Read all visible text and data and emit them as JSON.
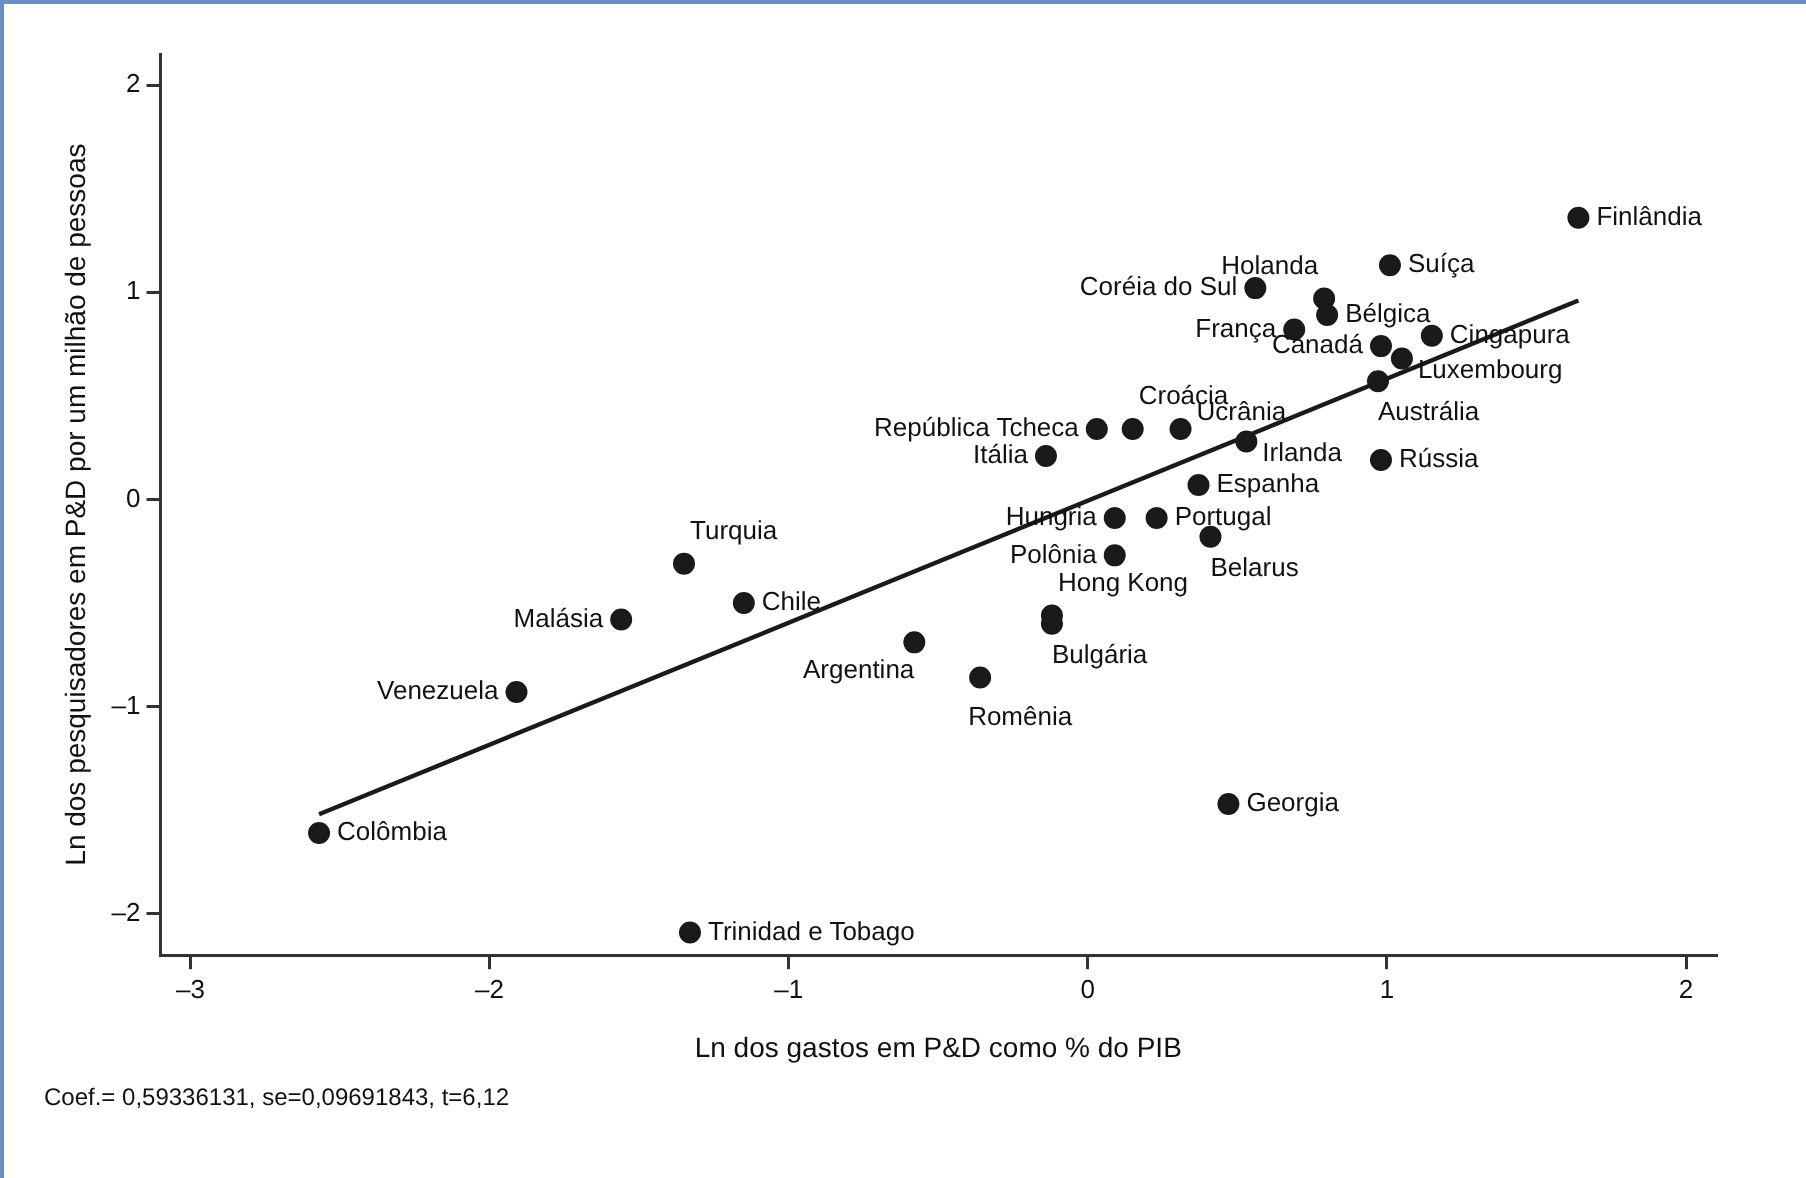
{
  "chart_data": {
    "type": "scatter",
    "xlabel": "Ln dos gastos em P&D como % do PIB",
    "ylabel": "Ln dos pesquisadores em P&D por um milhão de pessoas",
    "xlim": [
      -3.1,
      2.1
    ],
    "xticks": [
      {
        "value": -3,
        "label": "–3"
      },
      {
        "value": -2,
        "label": "–2"
      },
      {
        "value": -1,
        "label": "–1"
      },
      0,
      1,
      2
    ],
    "ylim": [
      -2.2,
      2.15
    ],
    "yticks": [
      {
        "value": -2,
        "label": "–2"
      },
      {
        "value": -1,
        "label": "–1"
      },
      0,
      1,
      2
    ],
    "grid": false,
    "legend": false,
    "marker": "circle",
    "series": [
      {
        "type": "scatter",
        "color": "#1a1a1a",
        "x": [
          1.64,
          1.01,
          0.79,
          0.56,
          0.8,
          0.69,
          0.98,
          1.15,
          1.05,
          0.97,
          0.98,
          0.03,
          0.15,
          0.31,
          0.53,
          -0.14,
          0.37,
          0.09,
          0.23,
          0.41,
          0.09,
          -0.12,
          -0.12,
          -0.36,
          0.47,
          -0.58,
          -1.35,
          -1.15,
          -1.56,
          -1.91,
          -2.57,
          -1.33
        ],
        "values": [
          1.36,
          1.13,
          0.97,
          1.02,
          0.89,
          0.82,
          0.74,
          0.79,
          0.68,
          0.57,
          0.19,
          0.34,
          0.34,
          0.34,
          0.28,
          0.21,
          0.07,
          -0.09,
          -0.09,
          -0.18,
          -0.27,
          -0.56,
          -0.6,
          -0.86,
          -1.47,
          -0.69,
          -0.31,
          -0.5,
          -0.58,
          -0.93,
          -1.61,
          -2.09
        ]
      },
      {
        "type": "line",
        "marker": "none",
        "color": "#1a1a1a",
        "x": [
          -2.57,
          1.64
        ],
        "values": [
          -1.52,
          0.96
        ]
      }
    ],
    "annotations": [
      {
        "text": "Finlândia",
        "x": 1.64,
        "y": 1.36
      },
      {
        "text": "Suíça",
        "x": 1.01,
        "y": 1.13
      },
      {
        "text": "Holanda",
        "x": 0.79,
        "y": 0.97
      },
      {
        "text": "Coréia do Sul",
        "x": 0.56,
        "y": 1.02
      },
      {
        "text": "Bélgica",
        "x": 0.8,
        "y": 0.89
      },
      {
        "text": "França",
        "x": 0.69,
        "y": 0.82
      },
      {
        "text": "Canadá",
        "x": 0.98,
        "y": 0.74
      },
      {
        "text": "Cingapura",
        "x": 1.15,
        "y": 0.79
      },
      {
        "text": "Luxembourg",
        "x": 1.05,
        "y": 0.68
      },
      {
        "text": "Austrália",
        "x": 0.97,
        "y": 0.57
      },
      {
        "text": "Rússia",
        "x": 0.98,
        "y": 0.19
      },
      {
        "text": "República Tcheca",
        "x": 0.03,
        "y": 0.34
      },
      {
        "text": "Croácia",
        "x": 0.15,
        "y": 0.34
      },
      {
        "text": "Ucrânia",
        "x": 0.31,
        "y": 0.34
      },
      {
        "text": "Irlanda",
        "x": 0.53,
        "y": 0.28
      },
      {
        "text": "Itália",
        "x": -0.14,
        "y": 0.21
      },
      {
        "text": "Espanha",
        "x": 0.37,
        "y": 0.07
      },
      {
        "text": "Hungria",
        "x": 0.09,
        "y": -0.09
      },
      {
        "text": "Portugal",
        "x": 0.23,
        "y": -0.09
      },
      {
        "text": "Belarus",
        "x": 0.41,
        "y": -0.18
      },
      {
        "text": "Polônia",
        "x": 0.09,
        "y": -0.27
      },
      {
        "text": "Hong Kong",
        "x": -0.12,
        "y": -0.56
      },
      {
        "text": "Bulgária",
        "x": -0.12,
        "y": -0.6
      },
      {
        "text": "Romênia",
        "x": -0.36,
        "y": -0.86
      },
      {
        "text": "Georgia",
        "x": 0.47,
        "y": -1.47
      },
      {
        "text": "Argentina",
        "x": -0.58,
        "y": -0.69
      },
      {
        "text": "Turquia",
        "x": -1.35,
        "y": -0.31
      },
      {
        "text": "Chile",
        "x": -1.15,
        "y": -0.5
      },
      {
        "text": "Malásia",
        "x": -1.56,
        "y": -0.58
      },
      {
        "text": "Venezuela",
        "x": -1.91,
        "y": -0.93
      },
      {
        "text": "Colômbia",
        "x": -2.57,
        "y": -1.61
      },
      {
        "text": "Trinidad e Tobago",
        "x": -1.33,
        "y": -2.09
      },
      "Coef.= 0,59336131, se=0,09691843, t=6,12"
    ]
  }
}
